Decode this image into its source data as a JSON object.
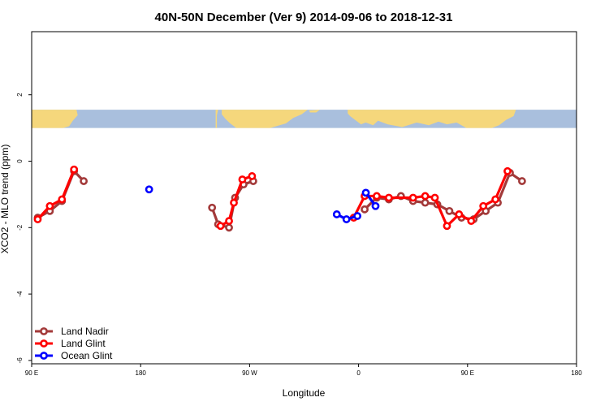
{
  "chart_data": {
    "type": "line",
    "title": "40N-50N December (Ver 9)   2014-09-06 to 2018-12-31",
    "xlabel": "Longitude",
    "ylabel": "XCO2 - MLO trend (ppm)",
    "xlim": [
      90,
      540
    ],
    "ylim": [
      -6.1,
      3.9
    ],
    "x_ticks": [
      {
        "value": 90,
        "label": "90 E"
      },
      {
        "value": 180,
        "label": "180"
      },
      {
        "value": 270,
        "label": "90 W"
      },
      {
        "value": 360,
        "label": "0"
      },
      {
        "value": 450,
        "label": "90 E"
      },
      {
        "value": 540,
        "label": "180"
      }
    ],
    "y_ticks": [
      {
        "value": 2,
        "label": "2"
      },
      {
        "value": 0,
        "label": "0"
      },
      {
        "value": -2,
        "label": "-2"
      },
      {
        "value": -4,
        "label": "-4"
      },
      {
        "value": -6,
        "label": "-6"
      }
    ],
    "map_band": {
      "y_from": 1.0,
      "y_to": 1.55,
      "land_color": "#f5d77c",
      "ocean_color": "#a9bfdd"
    },
    "legend": {
      "position": "bottom-left"
    },
    "series": [
      {
        "name": "Land Nadir",
        "color": "#a33a3a",
        "segments": [
          [
            [
              95,
              -1.7
            ],
            [
              105,
              -1.5
            ],
            [
              115,
              -1.2
            ],
            [
              125,
              -0.3
            ],
            [
              133,
              -0.6
            ]
          ],
          [
            [
              239,
              -1.4
            ],
            [
              244,
              -1.9
            ],
            [
              253,
              -2.0
            ],
            [
              258,
              -1.1
            ],
            [
              265,
              -0.7
            ],
            [
              273,
              -0.6
            ]
          ],
          [
            [
              365,
              -1.45
            ],
            [
              375,
              -1.1
            ],
            [
              385,
              -1.15
            ],
            [
              395,
              -1.05
            ],
            [
              405,
              -1.2
            ],
            [
              415,
              -1.25
            ],
            [
              425,
              -1.3
            ],
            [
              435,
              -1.5
            ],
            [
              445,
              -1.7
            ],
            [
              455,
              -1.75
            ],
            [
              465,
              -1.5
            ],
            [
              475,
              -1.25
            ],
            [
              485,
              -0.35
            ],
            [
              495,
              -0.6
            ]
          ]
        ]
      },
      {
        "name": "Land Glint",
        "color": "#ff0000",
        "segments": [
          [
            [
              95,
              -1.75
            ],
            [
              105,
              -1.35
            ],
            [
              115,
              -1.15
            ],
            [
              125,
              -0.25
            ]
          ],
          [
            [
              246,
              -1.95
            ],
            [
              253,
              -1.8
            ],
            [
              257,
              -1.25
            ],
            [
              264,
              -0.55
            ],
            [
              272,
              -0.45
            ]
          ],
          [
            [
              356,
              -1.7
            ],
            [
              365,
              -1.05
            ],
            [
              375,
              -1.05
            ],
            [
              385,
              -1.1
            ],
            [
              405,
              -1.1
            ],
            [
              415,
              -1.05
            ],
            [
              423,
              -1.1
            ],
            [
              433,
              -1.95
            ],
            [
              443,
              -1.6
            ],
            [
              453,
              -1.8
            ],
            [
              463,
              -1.35
            ],
            [
              473,
              -1.15
            ],
            [
              483,
              -0.3
            ]
          ]
        ]
      },
      {
        "name": "Ocean Glint",
        "color": "#0000ff",
        "segments": [
          [
            [
              187,
              -0.85
            ]
          ],
          [
            [
              342,
              -1.6
            ],
            [
              350,
              -1.75
            ],
            [
              359,
              -1.65
            ]
          ],
          [
            [
              366,
              -0.95
            ],
            [
              374,
              -1.35
            ]
          ]
        ]
      }
    ]
  }
}
